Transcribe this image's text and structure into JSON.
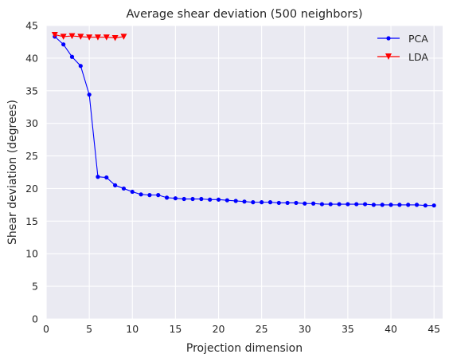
{
  "chart_data": {
    "type": "line",
    "title": "Average shear deviation (500 neighbors)",
    "xlabel": "Projection dimension",
    "ylabel": "Shear deviation (degrees)",
    "xlim": [
      0,
      46
    ],
    "ylim": [
      0,
      45
    ],
    "xticks": [
      0,
      5,
      10,
      15,
      20,
      25,
      30,
      35,
      40,
      45
    ],
    "yticks": [
      0,
      5,
      10,
      15,
      20,
      25,
      30,
      35,
      40,
      45
    ],
    "grid": true,
    "background": "#eaeaf2",
    "legend_position": "top-right",
    "series": [
      {
        "name": "PCA",
        "color": "#0000ff",
        "marker": "circle",
        "x": [
          1,
          2,
          3,
          4,
          5,
          6,
          7,
          8,
          9,
          10,
          11,
          12,
          13,
          14,
          15,
          16,
          17,
          18,
          19,
          20,
          21,
          22,
          23,
          24,
          25,
          26,
          27,
          28,
          29,
          30,
          31,
          32,
          33,
          34,
          35,
          36,
          37,
          38,
          39,
          40,
          41,
          42,
          43,
          44,
          45
        ],
        "values": [
          43.3,
          42.1,
          40.2,
          38.8,
          34.4,
          21.8,
          21.7,
          20.5,
          20.0,
          19.5,
          19.1,
          19.0,
          19.0,
          18.6,
          18.5,
          18.4,
          18.4,
          18.4,
          18.3,
          18.3,
          18.2,
          18.1,
          18.0,
          17.9,
          17.9,
          17.9,
          17.8,
          17.8,
          17.8,
          17.7,
          17.7,
          17.6,
          17.6,
          17.6,
          17.6,
          17.6,
          17.6,
          17.5,
          17.5,
          17.5,
          17.5,
          17.5,
          17.5,
          17.4,
          17.4
        ]
      },
      {
        "name": "LDA",
        "color": "#ff0000",
        "marker": "triangle-down",
        "x": [
          1,
          2,
          3,
          4,
          5,
          6,
          7,
          8,
          9
        ],
        "values": [
          43.6,
          43.3,
          43.4,
          43.3,
          43.2,
          43.2,
          43.2,
          43.1,
          43.3
        ]
      }
    ]
  }
}
